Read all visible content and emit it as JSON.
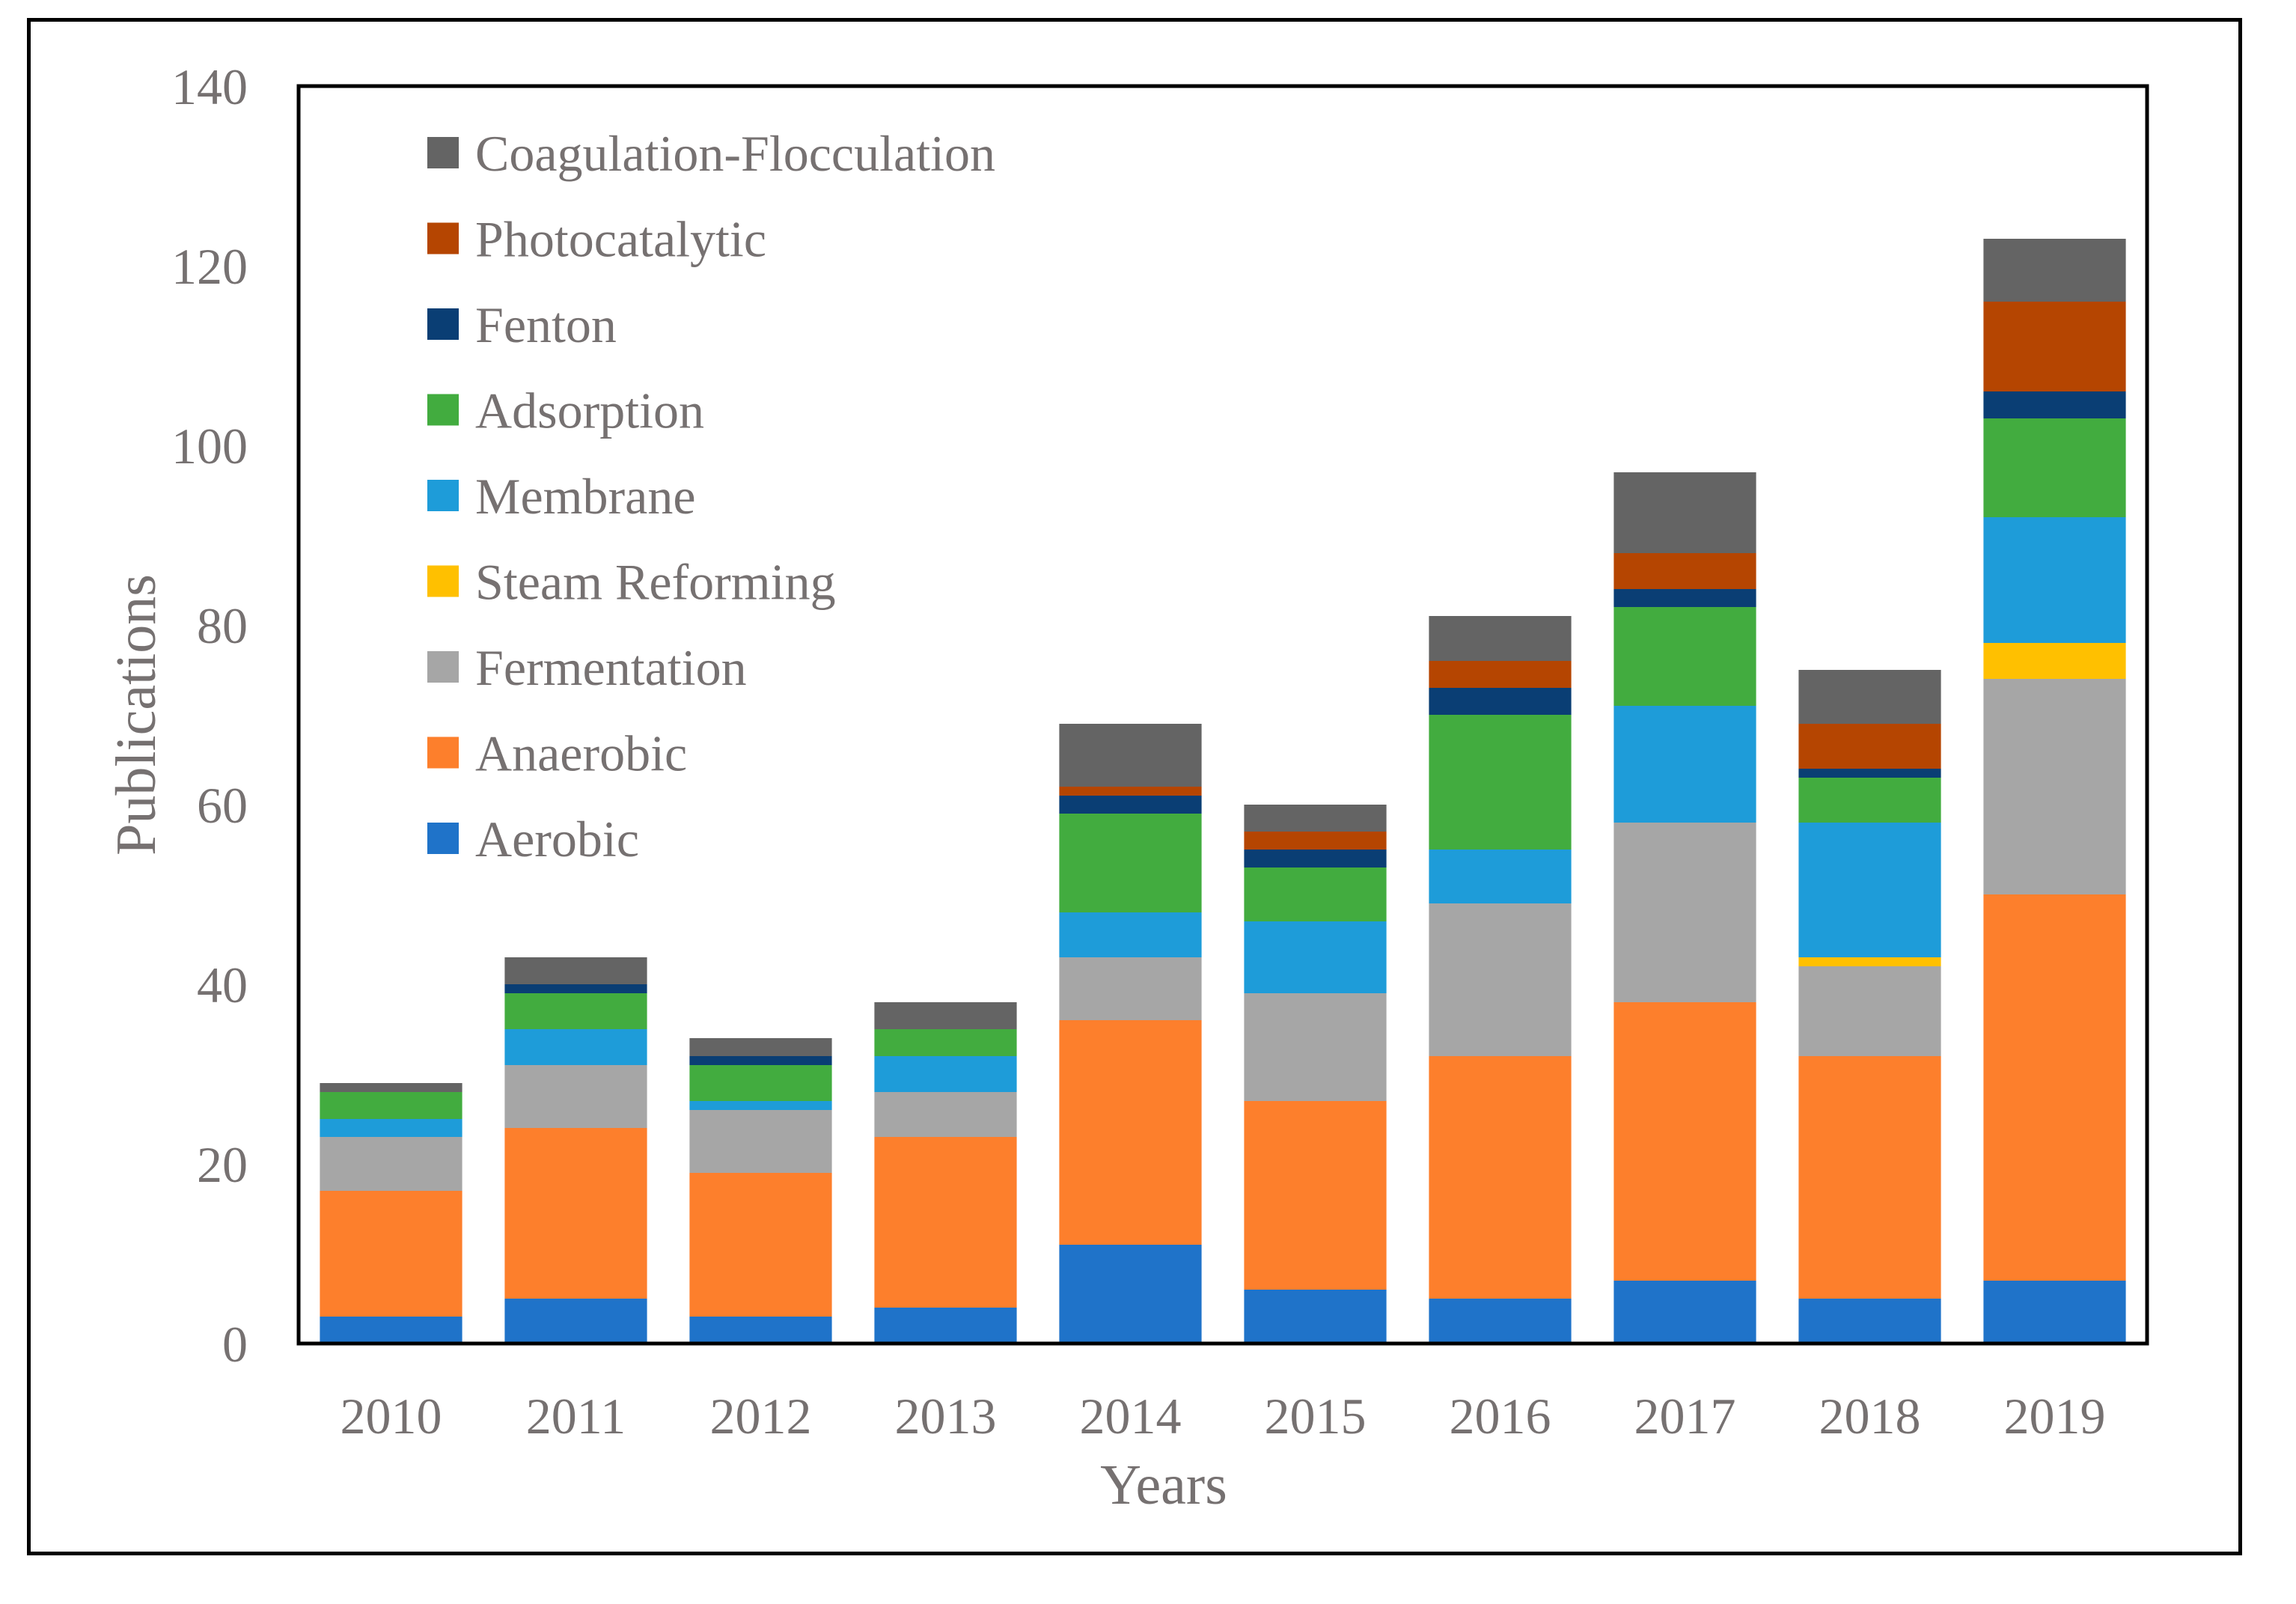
{
  "chart_data": {
    "type": "bar",
    "stacked": true,
    "title": "",
    "xlabel": "Years",
    "ylabel": "Publications",
    "ylim": [
      0,
      140
    ],
    "yticks": [
      0,
      20,
      40,
      60,
      80,
      100,
      120,
      140
    ],
    "grid": false,
    "legend_position": "top-left",
    "categories": [
      "2010",
      "2011",
      "2012",
      "2013",
      "2014",
      "2015",
      "2016",
      "2017",
      "2018",
      "2019"
    ],
    "series": [
      {
        "name": "Aerobic",
        "color": "#1F73C9",
        "values": [
          3,
          5,
          3,
          4,
          11,
          6,
          5,
          7,
          5,
          7
        ]
      },
      {
        "name": "Anaerobic",
        "color": "#FD7F2C",
        "values": [
          14,
          19,
          16,
          19,
          25,
          21,
          27,
          31,
          27,
          43
        ]
      },
      {
        "name": "Fermentation",
        "color": "#A6A6A6",
        "values": [
          6,
          7,
          7,
          5,
          7,
          12,
          17,
          20,
          10,
          24
        ]
      },
      {
        "name": "Steam Reforming",
        "color": "#FFC000",
        "values": [
          0,
          0,
          0,
          0,
          0,
          0,
          0,
          0,
          1,
          4
        ]
      },
      {
        "name": "Membrane",
        "color": "#1E9CD9",
        "values": [
          2,
          4,
          1,
          4,
          5,
          8,
          6,
          13,
          15,
          14
        ]
      },
      {
        "name": "Adsorption",
        "color": "#42AC3F",
        "values": [
          3,
          4,
          4,
          3,
          11,
          6,
          15,
          11,
          5,
          11
        ]
      },
      {
        "name": "Fenton",
        "color": "#0A3E74",
        "values": [
          0,
          1,
          1,
          0,
          2,
          2,
          3,
          2,
          1,
          3
        ]
      },
      {
        "name": "Photocatalytic",
        "color": "#B54501",
        "values": [
          0,
          0,
          0,
          0,
          1,
          2,
          3,
          4,
          5,
          10
        ]
      },
      {
        "name": "Coagulation-Flocculation",
        "color": "#646464",
        "values": [
          1,
          3,
          2,
          3,
          7,
          3,
          5,
          9,
          6,
          7
        ]
      }
    ],
    "legend_order": [
      "Coagulation-Flocculation",
      "Photocatalytic",
      "Fenton",
      "Adsorption",
      "Membrane",
      "Steam Reforming",
      "Fermentation",
      "Anaerobic",
      "Aerobic"
    ]
  }
}
